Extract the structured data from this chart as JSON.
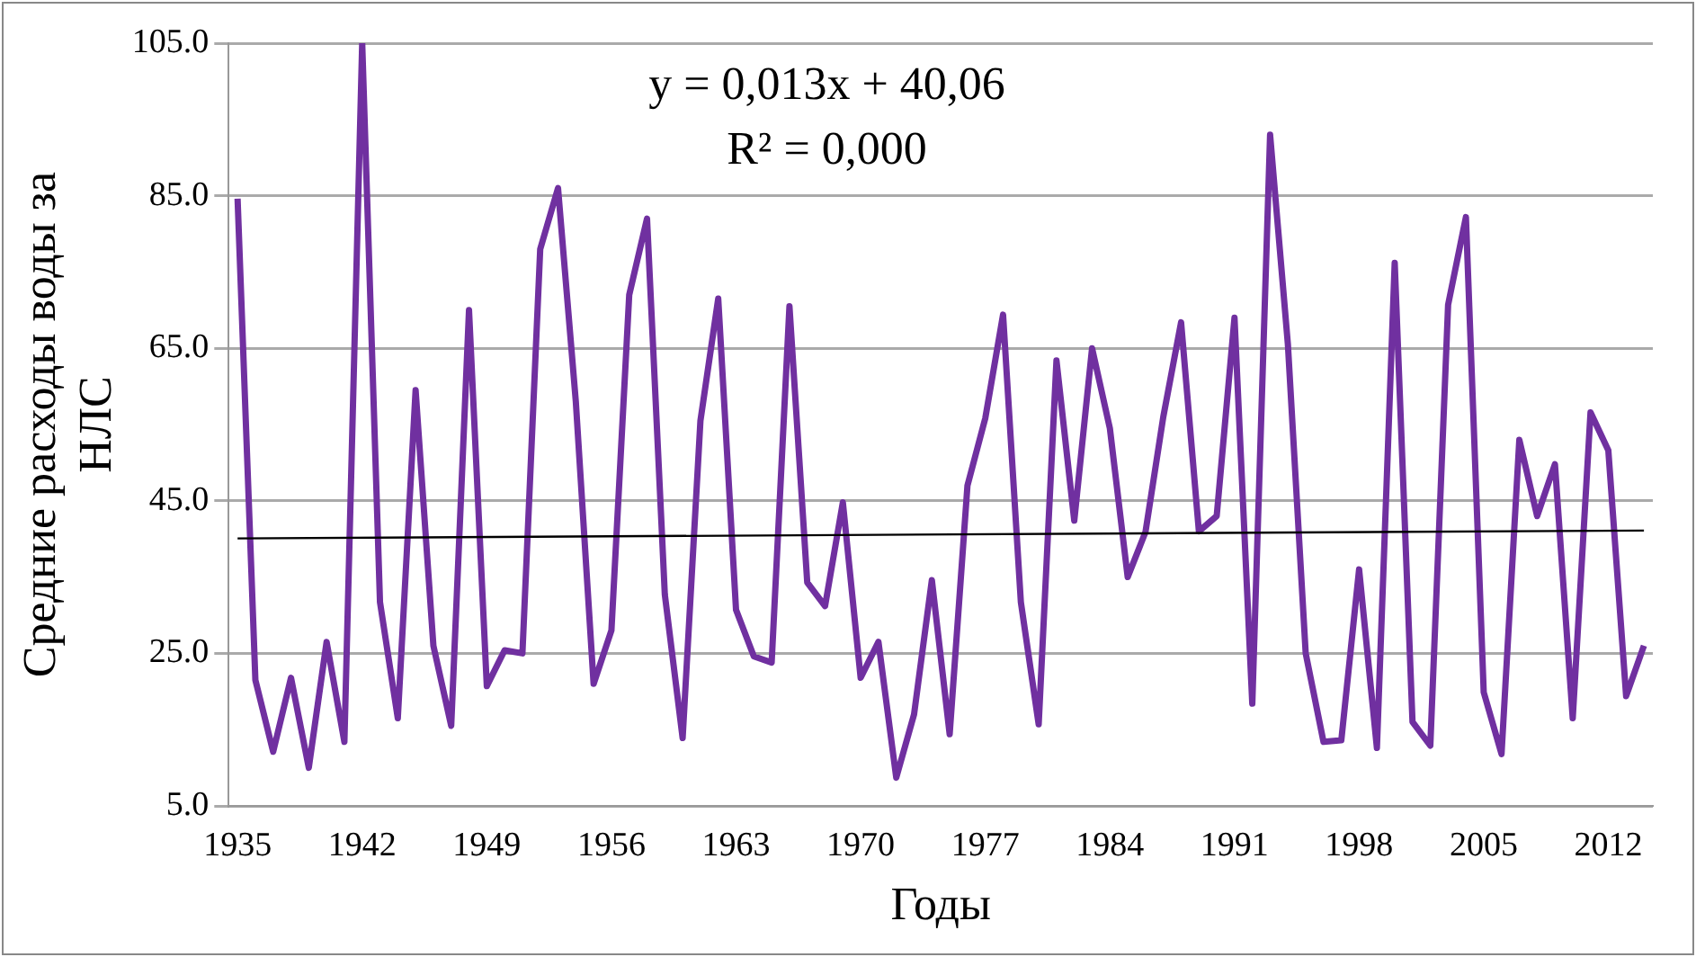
{
  "chart_data": {
    "type": "line",
    "xlabel": "Годы",
    "ylabel": "Средние расходы воды за НЛС",
    "x": [
      1935,
      1936,
      1937,
      1938,
      1939,
      1940,
      1941,
      1942,
      1943,
      1944,
      1945,
      1946,
      1947,
      1948,
      1949,
      1950,
      1951,
      1952,
      1953,
      1954,
      1955,
      1956,
      1957,
      1958,
      1959,
      1960,
      1961,
      1962,
      1963,
      1964,
      1965,
      1966,
      1967,
      1968,
      1969,
      1970,
      1971,
      1972,
      1973,
      1974,
      1975,
      1976,
      1977,
      1978,
      1979,
      1980,
      1981,
      1982,
      1983,
      1984,
      1985,
      1986,
      1987,
      1988,
      1989,
      1990,
      1991,
      1992,
      1993,
      1994,
      1995,
      1996,
      1997,
      1998,
      1999,
      2000,
      2001,
      2002,
      2003,
      2004,
      2005,
      2006,
      2007,
      2008,
      2009,
      2010,
      2011,
      2012,
      2013,
      2014
    ],
    "series": [
      {
        "color": "#7030a0",
        "values": [
          84.6,
          21.5,
          12.1,
          21.8,
          10,
          26.5,
          13.4,
          105,
          31.7,
          16.5,
          59.5,
          26,
          15.5,
          70,
          20.7,
          25.4,
          25,
          78,
          86,
          58,
          21,
          28,
          72,
          82,
          32.7,
          13.9,
          55.5,
          71.5,
          30.7,
          24.6,
          23.8,
          70.5,
          34.3,
          31.2,
          44.8,
          21.8,
          26.5,
          8.7,
          17,
          34.6,
          14.4,
          47,
          55.8,
          69.4,
          31.7,
          15.7,
          63.4,
          42.4,
          65,
          54.5,
          35,
          40.9,
          56,
          68.4,
          41,
          43,
          69,
          18.4,
          93,
          65.5,
          25,
          13.4,
          13.6,
          36,
          12.6,
          76.2,
          16,
          12.9,
          70.7,
          82.2,
          19.9,
          11.8,
          53,
          43,
          49.8,
          16.5,
          56.6,
          51.6,
          19.4,
          26
        ]
      },
      {
        "type": "line",
        "color": "#000000",
        "x": [
          1935,
          2014
        ],
        "values": [
          40.07,
          41.1
        ]
      }
    ],
    "xlim": [
      1934.5,
      2014.5
    ],
    "xticks": [
      1935,
      1942,
      1949,
      1956,
      1963,
      1970,
      1977,
      1984,
      1991,
      1998,
      2005,
      2012
    ],
    "ylim": [
      5,
      105
    ],
    "yticks": [
      {
        "value": 5,
        "label": "5.0"
      },
      {
        "value": 25,
        "label": "25.0"
      },
      {
        "value": 45,
        "label": "45.0"
      },
      {
        "value": 65,
        "label": "65.0"
      },
      {
        "value": 85,
        "label": "85.0"
      },
      {
        "value": 105,
        "label": "105.0"
      }
    ],
    "grid": "y",
    "legend": false,
    "marker": "none",
    "line_style": "solid",
    "annotations": [
      "y = 0,013x + 40,06",
      "R² = 0,000"
    ]
  }
}
